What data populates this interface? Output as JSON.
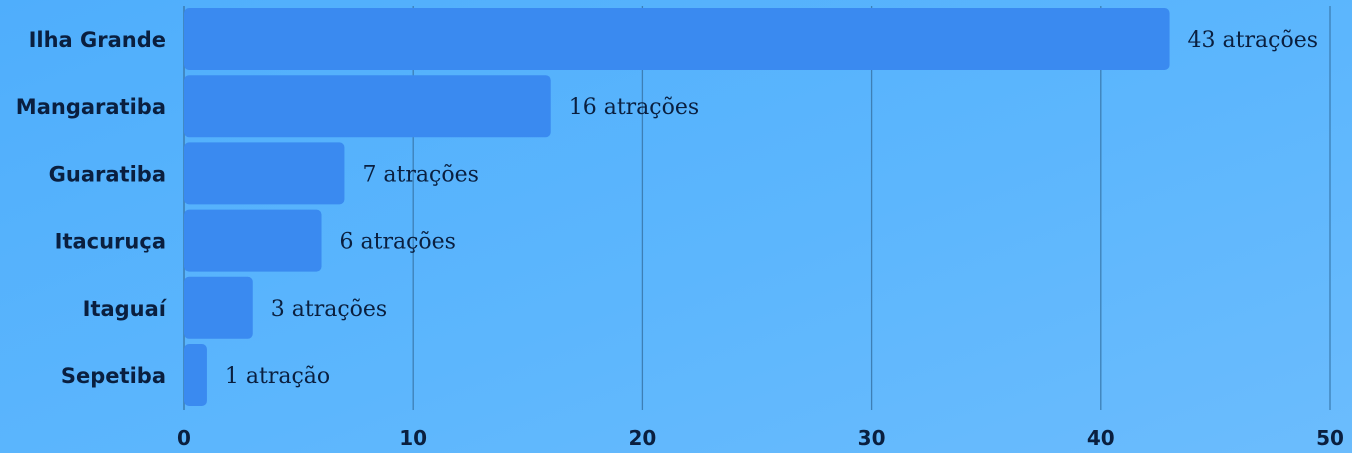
{
  "chart_data": {
    "type": "bar",
    "orientation": "horizontal",
    "categories": [
      "Ilha Grande",
      "Mangaratiba",
      "Guaratiba",
      "Itacuruça",
      "Itaguaí",
      "Sepetiba"
    ],
    "values": [
      43,
      16,
      7,
      6,
      3,
      1
    ],
    "data_labels": [
      "43 atrações",
      "16 atrações",
      "7 atrações",
      "6 atrações",
      "3 atrações",
      "1 atração"
    ],
    "xlim": [
      0,
      50
    ],
    "x_ticks": [
      0,
      10,
      20,
      30,
      40,
      50
    ],
    "title": "",
    "xlabel": "",
    "ylabel": "",
    "grid": true,
    "legend": "none",
    "colors": {
      "bar": "#3a8af0",
      "text": "#0a1f3f",
      "gridline": "#3d7fb5"
    }
  }
}
